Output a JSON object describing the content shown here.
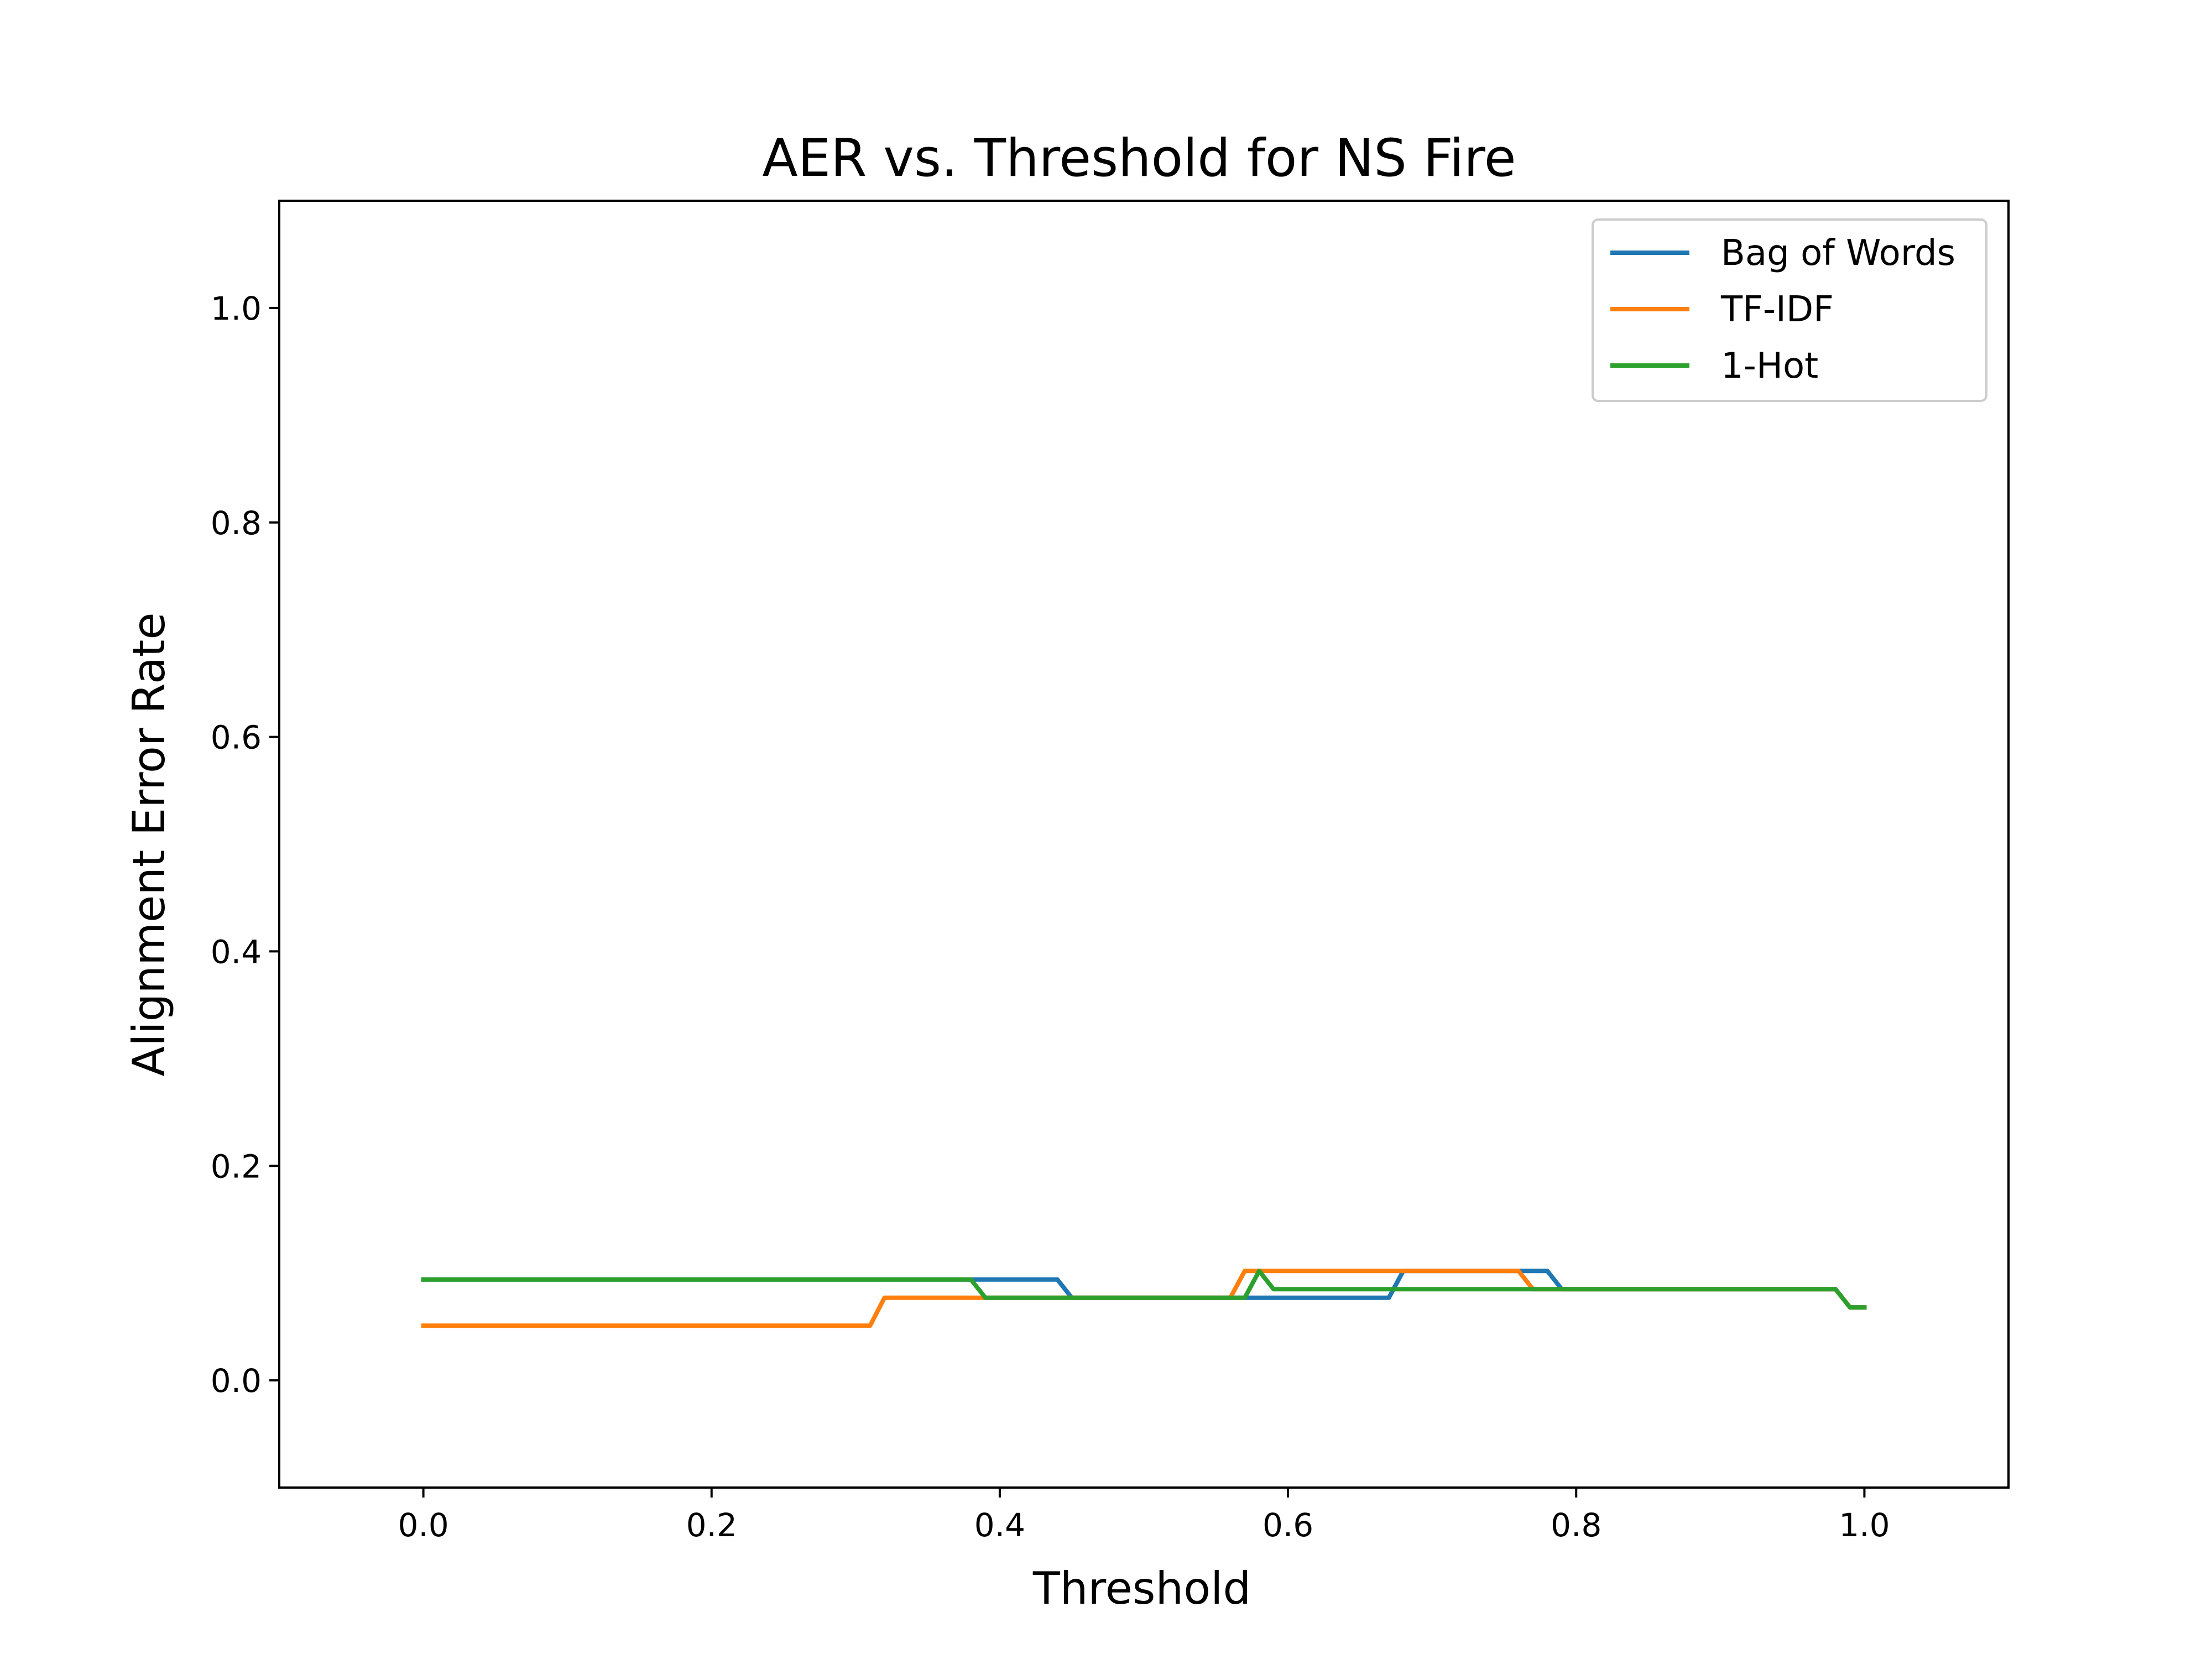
{
  "chart_data": {
    "type": "line",
    "title": "AER vs. Threshold for NS Fire",
    "xlabel": "Threshold",
    "ylabel": "Alignment Error Rate",
    "xlim": [
      -0.1,
      1.1
    ],
    "ylim": [
      -0.1,
      1.1
    ],
    "xticks": [
      0.0,
      0.2,
      0.4,
      0.6,
      0.8,
      1.0
    ],
    "xtick_labels": [
      "0.0",
      "0.2",
      "0.4",
      "0.6",
      "0.8",
      "1.0"
    ],
    "yticks": [
      0.0,
      0.2,
      0.4,
      0.6,
      0.8,
      1.0
    ],
    "ytick_labels": [
      "0.0",
      "0.2",
      "0.4",
      "0.6",
      "0.8",
      "1.0"
    ],
    "grid": false,
    "legend_position": "top-right",
    "series": [
      {
        "name": "Bag of Words",
        "color": "#1f77b4",
        "x": [
          0.0,
          0.38,
          0.44,
          0.45,
          0.67,
          0.68,
          0.78,
          0.79,
          0.98,
          0.99,
          1.0
        ],
        "y": [
          0.094,
          0.094,
          0.094,
          0.077,
          0.077,
          0.102,
          0.102,
          0.085,
          0.085,
          0.068,
          0.068
        ]
      },
      {
        "name": "TF-IDF",
        "color": "#ff7f0e",
        "x": [
          0.0,
          0.31,
          0.32,
          0.56,
          0.57,
          0.76,
          0.77,
          0.98,
          0.99,
          1.0
        ],
        "y": [
          0.051,
          0.051,
          0.077,
          0.077,
          0.102,
          0.102,
          0.085,
          0.085,
          0.068,
          0.068
        ]
      },
      {
        "name": "1-Hot",
        "color": "#2ca02c",
        "x": [
          0.0,
          0.38,
          0.39,
          0.57,
          0.58,
          0.59,
          0.98,
          0.99,
          1.0
        ],
        "y": [
          0.094,
          0.094,
          0.077,
          0.077,
          0.102,
          0.085,
          0.085,
          0.068,
          0.068
        ]
      }
    ]
  }
}
